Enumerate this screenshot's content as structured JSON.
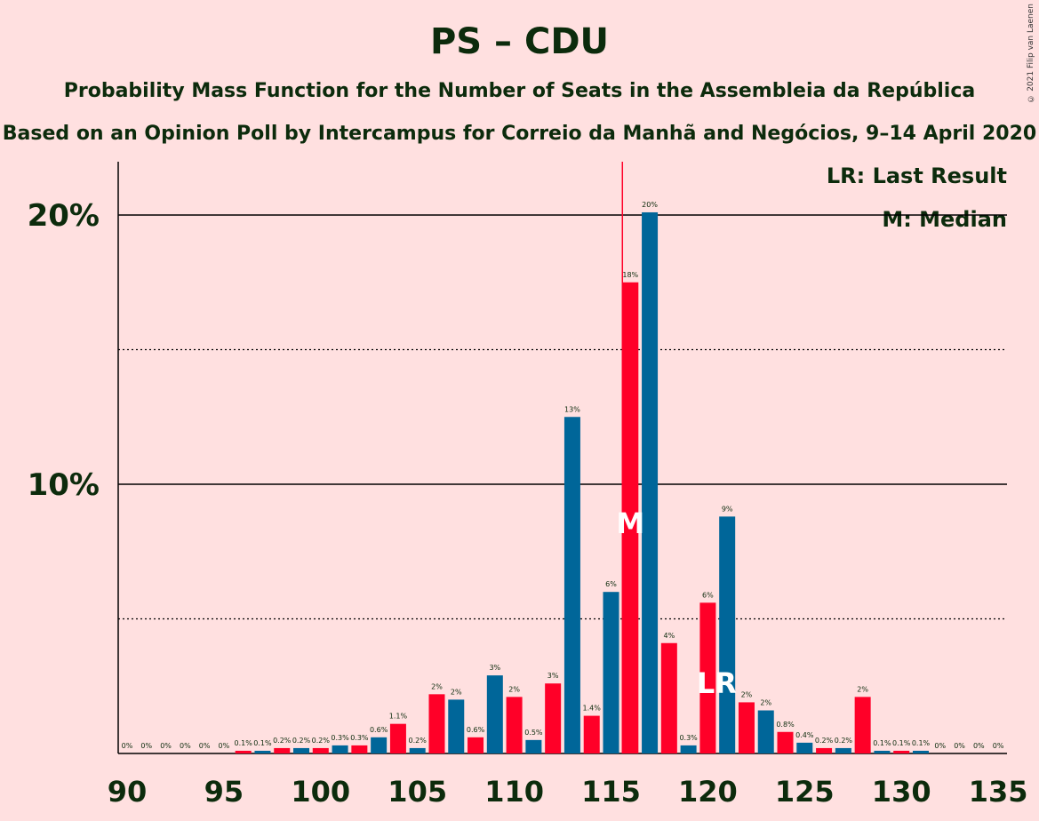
{
  "title": "PS – CDU",
  "subtitle": "Probability Mass Function for the Number of Seats in the Assembleia da República",
  "subtitle2": "Based on an Opinion Poll by Intercampus for Correio da Manhã and Negócios, 9–14 April 2020",
  "credit": "© 2021 Filip van Laenen",
  "legend": {
    "lr": "LR: Last Result",
    "median": "M: Median"
  },
  "colors": {
    "ps": "#ff0028",
    "cdu": "#006699",
    "background": "#ffe0e0",
    "text": "#0c2b0c"
  },
  "chart_data": {
    "type": "bar",
    "x": [
      90,
      91,
      92,
      93,
      94,
      95,
      96,
      97,
      98,
      99,
      100,
      101,
      102,
      103,
      104,
      105,
      106,
      107,
      108,
      109,
      110,
      111,
      112,
      113,
      114,
      115,
      116,
      117,
      118,
      119,
      120,
      121,
      122,
      123,
      124,
      125,
      126,
      127,
      128,
      129,
      130,
      131,
      132,
      133,
      134,
      135
    ],
    "values": [
      0,
      0,
      0,
      0,
      0,
      0,
      0.1,
      0.1,
      0.2,
      0.2,
      0.2,
      0.3,
      0.3,
      0.6,
      1.1,
      0.2,
      2.2,
      2.0,
      0.6,
      2.9,
      2.1,
      0.5,
      2.6,
      12.5,
      1.4,
      6.0,
      17.5,
      20.1,
      4.1,
      0.3,
      5.6,
      8.8,
      1.9,
      1.6,
      0.8,
      0.4,
      0.2,
      0.2,
      2.1,
      0.1,
      0.1,
      0.1,
      0,
      0,
      0,
      0
    ],
    "labels": [
      "0%",
      "0%",
      "0%",
      "0%",
      "0%",
      "0%",
      "0.1%",
      "0.1%",
      "0.2%",
      "0.2%",
      "0.2%",
      "0.3%",
      "0.3%",
      "0.6%",
      "1.1%",
      "0.2%",
      "2%",
      "2%",
      "0.6%",
      "3%",
      "2%",
      "0.5%",
      "3%",
      "13%",
      "1.4%",
      "6%",
      "18%",
      "20%",
      "4%",
      "0.3%",
      "6%",
      "9%",
      "2%",
      "2%",
      "0.8%",
      "0.4%",
      "0.2%",
      "0.2%",
      "2%",
      "0.1%",
      "0.1%",
      "0.1%",
      "0%",
      "0%",
      "0%",
      "0%"
    ],
    "xticks": [
      90,
      95,
      100,
      105,
      110,
      115,
      120,
      125,
      130,
      135
    ],
    "yticks": [
      {
        "value": 10,
        "label": "10%"
      },
      {
        "value": 20,
        "label": "20%"
      }
    ],
    "dotted_gridlines": [
      5,
      15
    ],
    "ylim": [
      0,
      22
    ],
    "last_result": 116,
    "last_result_mark": 120,
    "median": 116,
    "median_mark": "M",
    "lr_mark": "LR"
  }
}
